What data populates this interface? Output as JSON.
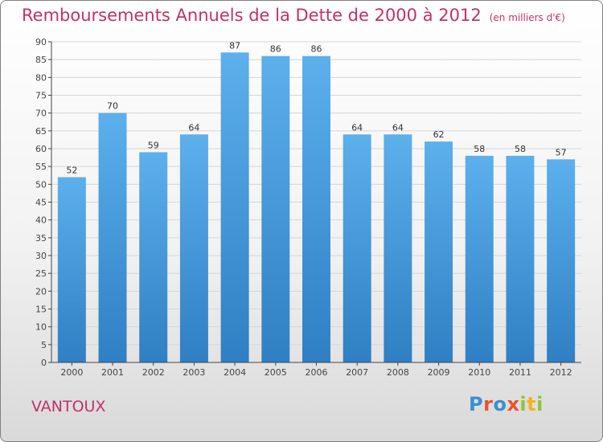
{
  "title": "Remboursements Annuels de la Dette de 2000 à 2012",
  "unit": "(en milliers d'€)",
  "place": "VANTOUX",
  "logo": {
    "letters": [
      "P",
      "r",
      "o",
      "x",
      "i",
      "t",
      "i"
    ],
    "colors": [
      "#3a8fd0",
      "#e8542b",
      "#3a8fd0",
      "#e8542b",
      "#8dc43f",
      "#f2b31b",
      "#8dc43f"
    ]
  },
  "chart_data": {
    "type": "bar",
    "title": "Remboursements Annuels de la Dette de 2000 à 2012",
    "categories": [
      "2000",
      "2001",
      "2002",
      "2003",
      "2004",
      "2005",
      "2006",
      "2007",
      "2008",
      "2009",
      "2010",
      "2011",
      "2012"
    ],
    "values": [
      52,
      70,
      59,
      64,
      87,
      86,
      86,
      64,
      64,
      62,
      58,
      58,
      57
    ],
    "ylim": [
      0,
      90
    ],
    "yticks": [
      0,
      5,
      10,
      15,
      20,
      25,
      30,
      35,
      40,
      45,
      50,
      55,
      60,
      65,
      70,
      75,
      80,
      85,
      90
    ],
    "grid": true,
    "bar_color": "#4a9fe0"
  }
}
